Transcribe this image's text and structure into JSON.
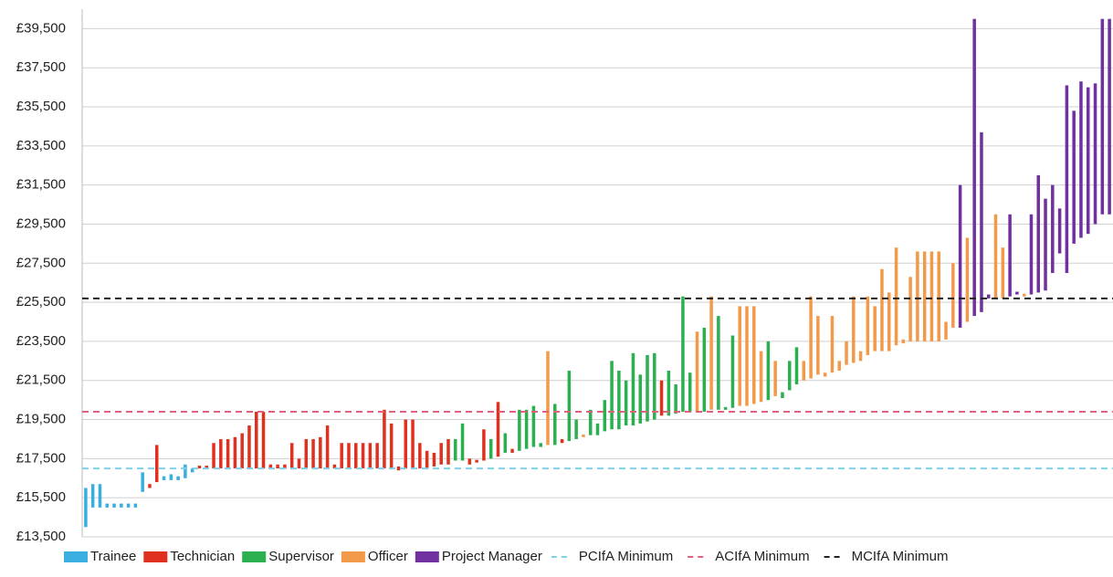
{
  "chart_data": {
    "type": "range_bar",
    "ylim": [
      13500,
      40500
    ],
    "yticks": [
      {
        "value": 13500,
        "label": "£13,500"
      },
      {
        "value": 15500,
        "label": "£15,500"
      },
      {
        "value": 17500,
        "label": "£17,500"
      },
      {
        "value": 19500,
        "label": "£19,500"
      },
      {
        "value": 21500,
        "label": "£21,500"
      },
      {
        "value": 23500,
        "label": "£23,500"
      },
      {
        "value": 25500,
        "label": "£25,500"
      },
      {
        "value": 27500,
        "label": "£27,500"
      },
      {
        "value": 29500,
        "label": "£29,500"
      },
      {
        "value": 31500,
        "label": "£31,500"
      },
      {
        "value": 33500,
        "label": "£33,500"
      },
      {
        "value": 35500,
        "label": "£35,500"
      },
      {
        "value": 37500,
        "label": "£37,500"
      },
      {
        "value": 39500,
        "label": "£39,500"
      }
    ],
    "grid": true,
    "xlim": [
      -0.5,
      144.5
    ],
    "series": [
      {
        "name": "Trainee",
        "color": "#3aaee0",
        "x": [
          0,
          1,
          2,
          3,
          4,
          5,
          6,
          7,
          8,
          11,
          12,
          13,
          14,
          15
        ],
        "low": [
          14000,
          15000,
          15000,
          15000,
          15000,
          15000,
          15000,
          15000,
          15800,
          16400,
          16400,
          16400,
          16500,
          16800
        ],
        "high": [
          16000,
          16200,
          16200,
          15200,
          15200,
          15200,
          15200,
          15200,
          16800,
          16600,
          16700,
          16600,
          17200,
          17000
        ]
      },
      {
        "name": "Technician",
        "color": "#e0301e",
        "x": [
          9,
          10,
          16,
          17,
          18,
          19,
          20,
          21,
          22,
          23,
          24,
          25,
          26,
          27,
          28,
          29,
          30,
          31,
          32,
          33,
          34,
          35,
          36,
          37,
          38,
          39,
          40,
          41,
          42,
          43,
          44,
          45,
          46,
          47,
          48,
          49,
          50,
          51,
          54,
          55,
          56,
          58,
          60,
          67,
          81
        ],
        "low": [
          16000,
          16300,
          17000,
          17000,
          17000,
          17000,
          17000,
          17000,
          17000,
          17000,
          17000,
          17000,
          17000,
          17000,
          17000,
          17000,
          17000,
          17000,
          17000,
          17000,
          17000,
          17000,
          17000,
          17000,
          17000,
          17000,
          17000,
          17000,
          17000,
          17000,
          16900,
          17000,
          17000,
          17000,
          17000,
          17100,
          17200,
          17200,
          17200,
          17300,
          17400,
          17600,
          17800,
          18300,
          19700
        ],
        "high": [
          16200,
          18200,
          17100,
          17100,
          18300,
          18500,
          18500,
          18600,
          18800,
          19200,
          19900,
          19900,
          17200,
          17200,
          17200,
          18300,
          17500,
          18500,
          18500,
          18600,
          19200,
          17200,
          18300,
          18300,
          18300,
          18300,
          18300,
          18300,
          20000,
          19300,
          17100,
          19500,
          19500,
          18300,
          17900,
          17800,
          18300,
          18500,
          17500,
          17400,
          19000,
          20400,
          18000,
          18500,
          21500
        ]
      },
      {
        "name": "Supervisor",
        "color": "#2bb050",
        "x": [
          52,
          53,
          57,
          59,
          61,
          62,
          63,
          64,
          66,
          68,
          69,
          71,
          72,
          73,
          74,
          75,
          76,
          77,
          78,
          79,
          80,
          82,
          83,
          84,
          85,
          87,
          89,
          90,
          91,
          96,
          98,
          99,
          100
        ],
        "low": [
          17400,
          17400,
          17500,
          17800,
          17900,
          18000,
          18100,
          18100,
          18200,
          18400,
          18500,
          18700,
          18700,
          18900,
          19000,
          19000,
          19200,
          19200,
          19300,
          19400,
          19500,
          19700,
          19800,
          19900,
          19900,
          19900,
          20000,
          20000,
          20100,
          20500,
          20600,
          21000,
          21300
        ],
        "high": [
          18500,
          19300,
          18500,
          18800,
          20000,
          20000,
          20200,
          18300,
          20300,
          22000,
          19500,
          20000,
          19300,
          20500,
          22500,
          22000,
          21500,
          22900,
          21800,
          22800,
          22900,
          22000,
          21300,
          25800,
          21900,
          24200,
          24800,
          20100,
          23800,
          23500,
          20900,
          22500,
          23200
        ]
      },
      {
        "name": "Officer",
        "color": "#f29a4a",
        "x": [
          65,
          70,
          86,
          88,
          92,
          93,
          94,
          95,
          97,
          101,
          102,
          103,
          104,
          105,
          106,
          107,
          108,
          109,
          110,
          111,
          112,
          113,
          114,
          115,
          116,
          117,
          118,
          119,
          120,
          121,
          122,
          124,
          128,
          129,
          132
        ],
        "low": [
          18200,
          18600,
          19900,
          20000,
          20200,
          20200,
          20300,
          20400,
          20700,
          21500,
          21600,
          21800,
          21700,
          21900,
          22000,
          22300,
          22400,
          22500,
          22800,
          23000,
          23000,
          23000,
          23300,
          23400,
          23500,
          23500,
          23500,
          23500,
          23500,
          23600,
          24200,
          24500,
          25700,
          25700,
          25800
        ],
        "high": [
          23000,
          18700,
          24000,
          25800,
          25300,
          25300,
          25300,
          23000,
          22500,
          22500,
          25800,
          24800,
          21900,
          24800,
          22500,
          23500,
          25800,
          23000,
          25800,
          25300,
          27200,
          26000,
          28300,
          23600,
          26800,
          28100,
          28100,
          28100,
          28100,
          24500,
          27500,
          28800,
          30000,
          28300,
          25900
        ]
      },
      {
        "name": "Project Manager",
        "color": "#7030a0",
        "x": [
          123,
          125,
          126,
          127,
          130,
          131,
          133,
          134,
          135,
          136,
          137,
          138,
          139,
          140,
          141,
          142,
          143,
          144
        ],
        "low": [
          24200,
          24800,
          25000,
          25700,
          25800,
          25900,
          25900,
          26000,
          26100,
          27000,
          28000,
          27000,
          28500,
          28800,
          29000,
          29500,
          30000,
          30000
        ],
        "high": [
          31500,
          40000,
          34200,
          25900,
          30000,
          25900,
          30000,
          32000,
          30800,
          31500,
          30300,
          36600,
          35300,
          36800,
          36500,
          36700,
          40000,
          40000
        ]
      }
    ],
    "lines": [
      {
        "name": "PCIfA Minimum",
        "color": "#7fd0e8",
        "value": 17000
      },
      {
        "name": "ACIfA Minimum",
        "color": "#e0607e",
        "value": 19900
      },
      {
        "name": "MCIfA Minimum",
        "color": "#222222",
        "value": 25700
      }
    ]
  }
}
